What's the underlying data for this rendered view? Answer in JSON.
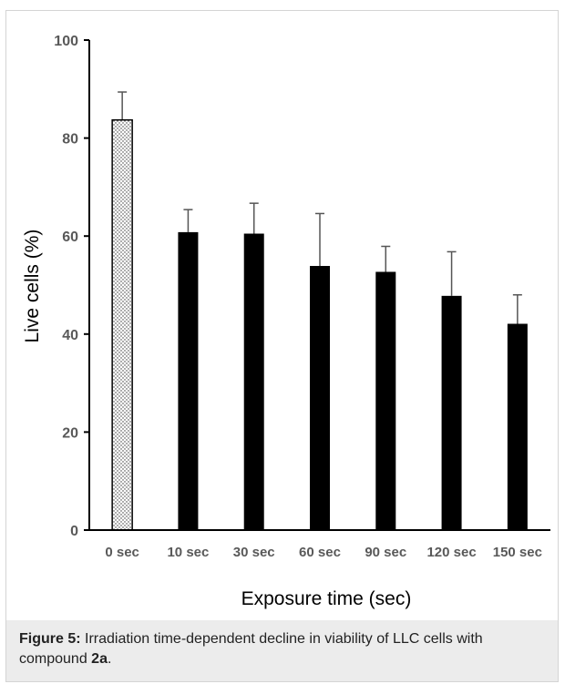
{
  "chart_data": {
    "type": "bar",
    "categories": [
      "0 sec",
      "10 sec",
      "30 sec",
      "60 sec",
      "90 sec",
      "120 sec",
      "150 sec"
    ],
    "values": [
      83.7,
      60.8,
      60.5,
      53.9,
      52.7,
      47.8,
      42.1
    ],
    "errors": [
      5.7,
      4.6,
      6.2,
      10.7,
      5.2,
      9.0,
      5.9
    ],
    "xlabel": "Exposure time (sec)",
    "ylabel": "Live cells (%)",
    "ylim": [
      0,
      100
    ],
    "yticks": [
      0,
      20,
      40,
      60,
      80,
      100
    ],
    "grid": false,
    "legend": "none",
    "bar_styles": [
      "dotted",
      "solid",
      "solid",
      "solid",
      "solid",
      "solid",
      "solid"
    ],
    "colors": {
      "solid": "#000000",
      "outline": "#000000",
      "error_bar": "#555555",
      "axis": "#000000",
      "tick_text": "#595959"
    }
  },
  "caption": {
    "label": "Figure 5:",
    "text_before": " Irradiation time-dependent decline in viability of LLC cells with compound ",
    "compound": "2a",
    "text_after": "."
  }
}
